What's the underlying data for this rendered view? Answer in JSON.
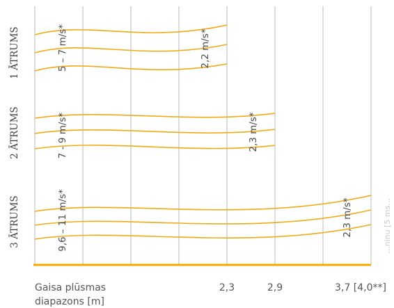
{
  "chart_data": {
    "type": "line",
    "title": "",
    "xlabel": [
      "Gaisa plūsmas",
      "diapazons [m]"
    ],
    "x_ticks": [
      "2,3",
      "2,9",
      "3,7 [4,0**]"
    ],
    "grid": true,
    "rows": [
      {
        "name": "1 ĀTRUMS",
        "start_speed": "5 – 7 m/s*",
        "end_speed": "2,2 m/s*",
        "end_range_m": 2.3
      },
      {
        "name": "2 ĀTRUMS",
        "start_speed": "7 - 9 m/s*",
        "end_speed": "2,3 m/s*",
        "end_range_m": 2.9
      },
      {
        "name": "3 ĀTRUMS",
        "start_speed": "9,6 – 11 m/s*",
        "end_speed": "2,3 m/s*",
        "end_range_m": 3.7,
        "end_range_max_m": 4.0
      }
    ],
    "colors": {
      "flow": "#f0aa17",
      "baseline": "#f5a800",
      "grid": "#b9b9b9"
    }
  },
  "edge_fragment": "...ninu [5 ms..."
}
